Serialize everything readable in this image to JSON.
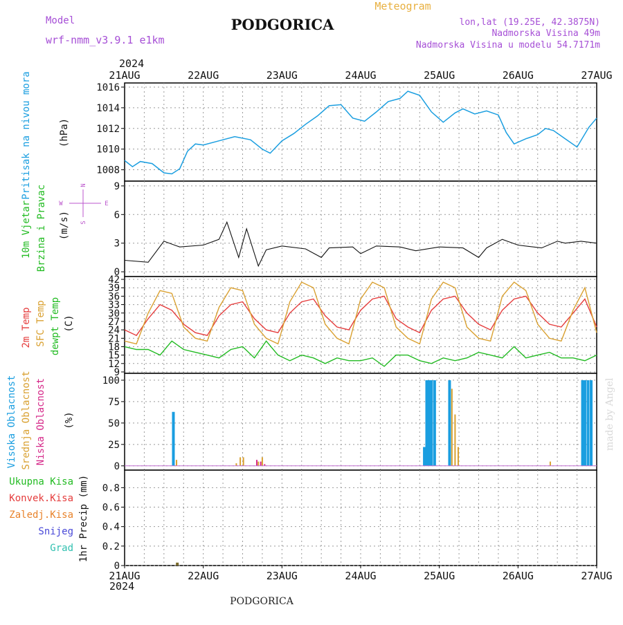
{
  "header": {
    "model_label": "Model",
    "model_name": "wrf-nmm_v3.9.1 e1km",
    "city": "PODGORICA",
    "meteogram": "Meteogram",
    "lonlat": "lon,lat (19.25E, 42.3875N)",
    "alt": "Nadmorska Visina 49m",
    "alt_model": "Nadmorska Visina u modelu 54.7171m",
    "year": "2024",
    "footer_city": "PODGORICA",
    "credit": "made by Angel"
  },
  "colors": {
    "pressure": "#1a9ee0",
    "wind_axis": "#22bb22",
    "temp2m": "#e53c3c",
    "sfc": "#d9a030",
    "dew": "#22bb22",
    "high_cloud": "#1a9ee0",
    "mid_cloud": "#d9a030",
    "low_cloud": "#d62a8a",
    "precip_total": "#22bb22",
    "precip_conv": "#e53c3c",
    "precip_frozen": "#e8822a",
    "snow": "#4848d8",
    "hail": "#30c0b0",
    "compass": "#bb55cc",
    "header_purple": "#a64fd6"
  },
  "compass": {
    "n": "N",
    "w": "W",
    "e": "E",
    "s": "S"
  },
  "chart_data": [
    {
      "type": "line",
      "panel": "pressure",
      "ylabel": [
        "Pritisak na nivou mora",
        "(hPa)"
      ],
      "x_ticks": [
        "21AUG",
        "22AUG",
        "23AUG",
        "24AUG",
        "25AUG",
        "26AUG",
        "27AUG"
      ],
      "yticks": [
        1008,
        1010,
        1012,
        1014,
        1016
      ],
      "ylim": [
        1006.9,
        1016.4
      ],
      "x_days": [
        0,
        0.1,
        0.2,
        0.35,
        0.5,
        0.6,
        0.7,
        0.8,
        0.9,
        1.0,
        1.2,
        1.4,
        1.6,
        1.75,
        1.85,
        2.0,
        2.15,
        2.3,
        2.45,
        2.6,
        2.75,
        2.9,
        3.05,
        3.2,
        3.35,
        3.5,
        3.6,
        3.75,
        3.9,
        4.05,
        4.2,
        4.3,
        4.45,
        4.6,
        4.75,
        4.85,
        4.95,
        5.1,
        5.25,
        5.35,
        5.45,
        5.6,
        5.75,
        5.9,
        6.0
      ],
      "values": [
        1008.9,
        1008.3,
        1008.8,
        1008.6,
        1007.7,
        1007.6,
        1008.1,
        1009.8,
        1010.5,
        1010.4,
        1010.8,
        1011.2,
        1010.9,
        1010.0,
        1009.6,
        1010.8,
        1011.5,
        1012.4,
        1013.2,
        1014.2,
        1014.3,
        1013.0,
        1012.7,
        1013.6,
        1014.6,
        1014.9,
        1015.6,
        1015.2,
        1013.6,
        1012.6,
        1013.5,
        1013.9,
        1013.4,
        1013.7,
        1013.3,
        1011.6,
        1010.5,
        1011.0,
        1011.4,
        1012.0,
        1011.8,
        1011.0,
        1010.2,
        1012.1,
        1013.0
      ],
      "grid": true
    },
    {
      "type": "line",
      "panel": "wind",
      "ylabel": [
        "10m Vjetar",
        "Brzina i Pravac",
        "(m/s)"
      ],
      "yticks": [
        0,
        3,
        6,
        9
      ],
      "ylim": [
        -0.5,
        9.5
      ],
      "x_days": [
        0,
        0.3,
        0.5,
        0.7,
        1.0,
        1.2,
        1.3,
        1.45,
        1.55,
        1.7,
        1.8,
        2.0,
        2.3,
        2.5,
        2.6,
        2.9,
        3.0,
        3.2,
        3.5,
        3.7,
        4.0,
        4.3,
        4.5,
        4.6,
        4.8,
        5.0,
        5.3,
        5.5,
        5.6,
        5.8,
        6.0
      ],
      "values": [
        1.2,
        1.0,
        3.2,
        2.6,
        2.8,
        3.4,
        5.2,
        1.5,
        4.5,
        0.6,
        2.3,
        2.7,
        2.4,
        1.5,
        2.5,
        2.6,
        1.9,
        2.7,
        2.6,
        2.2,
        2.6,
        2.5,
        1.5,
        2.5,
        3.4,
        2.8,
        2.5,
        3.2,
        3.0,
        3.2,
        3.0
      ],
      "grid": true
    },
    {
      "type": "line",
      "panel": "temperature",
      "ylabel": [
        "2m Temp",
        "SFC Temp",
        "dewpt Temp",
        "(C)"
      ],
      "yticks": [
        9,
        12,
        15,
        18,
        21,
        24,
        27,
        30,
        33,
        36,
        39,
        42
      ],
      "ylim": [
        8.5,
        43
      ],
      "x_days": [
        0,
        0.15,
        0.3,
        0.45,
        0.6,
        0.75,
        0.9,
        1.05,
        1.2,
        1.35,
        1.5,
        1.65,
        1.8,
        1.95,
        2.1,
        2.25,
        2.4,
        2.55,
        2.7,
        2.85,
        3.0,
        3.15,
        3.3,
        3.45,
        3.6,
        3.75,
        3.9,
        4.05,
        4.2,
        4.35,
        4.5,
        4.65,
        4.8,
        4.95,
        5.1,
        5.25,
        5.4,
        5.55,
        5.7,
        5.85,
        6.0
      ],
      "series": [
        {
          "name": "2m Temp",
          "values": [
            24,
            22,
            28,
            33,
            31,
            26,
            23,
            22,
            29,
            33,
            34,
            28,
            24,
            23,
            30,
            34,
            35,
            29,
            25,
            24,
            31,
            35,
            36,
            28,
            25,
            23,
            31,
            35,
            36,
            30,
            26,
            24,
            31,
            35,
            36,
            30,
            26,
            25,
            30,
            35,
            25
          ]
        },
        {
          "name": "SFC Temp",
          "values": [
            20,
            19,
            30,
            38,
            37,
            25,
            21,
            20,
            32,
            39,
            38,
            26,
            21,
            19,
            34,
            41,
            39,
            26,
            21,
            19,
            35,
            41,
            39,
            25,
            21,
            19,
            35,
            41,
            39,
            25,
            21,
            20,
            36,
            41,
            38,
            26,
            21,
            20,
            31,
            39,
            23
          ]
        },
        {
          "name": "dewpt Temp",
          "values": [
            18,
            17,
            17,
            15,
            20,
            17,
            16,
            15,
            14,
            17,
            18,
            14,
            20,
            15,
            13,
            15,
            14,
            12,
            14,
            13,
            13,
            14,
            11,
            15,
            15,
            13,
            12,
            14,
            13,
            14,
            16,
            15,
            14,
            18,
            14,
            15,
            16,
            14,
            14,
            13,
            15
          ]
        }
      ],
      "grid": true
    },
    {
      "type": "bar",
      "panel": "cloud",
      "ylabel": [
        "Visoka Oblacnost",
        "Srednja Oblacnost",
        "Niska Oblacnost",
        "(%)"
      ],
      "yticks": [
        0,
        25,
        50,
        75,
        100
      ],
      "ylim": [
        -5,
        108
      ],
      "series": [
        {
          "name": "Visoka Oblacnost",
          "x_days": [
            0.62,
            3.81,
            3.84,
            3.87,
            3.9,
            3.94,
            4.13,
            5.82,
            5.85,
            5.89,
            5.93
          ],
          "values": [
            63,
            22,
            100,
            100,
            100,
            100,
            100,
            100,
            100,
            100,
            100
          ]
        },
        {
          "name": "Srednja Oblacnost",
          "x_days": [
            0.66,
            1.42,
            1.47,
            1.51,
            1.7,
            1.75,
            4.16,
            4.2,
            4.24,
            5.41
          ],
          "values": [
            7,
            3,
            10,
            10,
            5,
            10,
            90,
            60,
            22,
            5
          ]
        },
        {
          "name": "Niska Oblacnost",
          "x_days": [
            1.68,
            1.73,
            1.78
          ],
          "values": [
            7,
            5,
            2
          ]
        }
      ],
      "grid": true
    },
    {
      "type": "bar",
      "panel": "precip",
      "ylabel": [
        "1hr Precip (mm)"
      ],
      "legend": [
        "Ukupna Kisa",
        "Konvek.Kisa",
        "Zaledj.Kisa",
        "Snijeg",
        "Grad"
      ],
      "yticks": [
        0,
        0.2,
        0.4,
        0.6,
        0.8
      ],
      "ylim": [
        0,
        0.98
      ],
      "series": [
        {
          "name": "Ukupna Kisa",
          "x_days": [
            0.67
          ],
          "values": [
            0.03
          ]
        }
      ],
      "grid": true
    }
  ]
}
